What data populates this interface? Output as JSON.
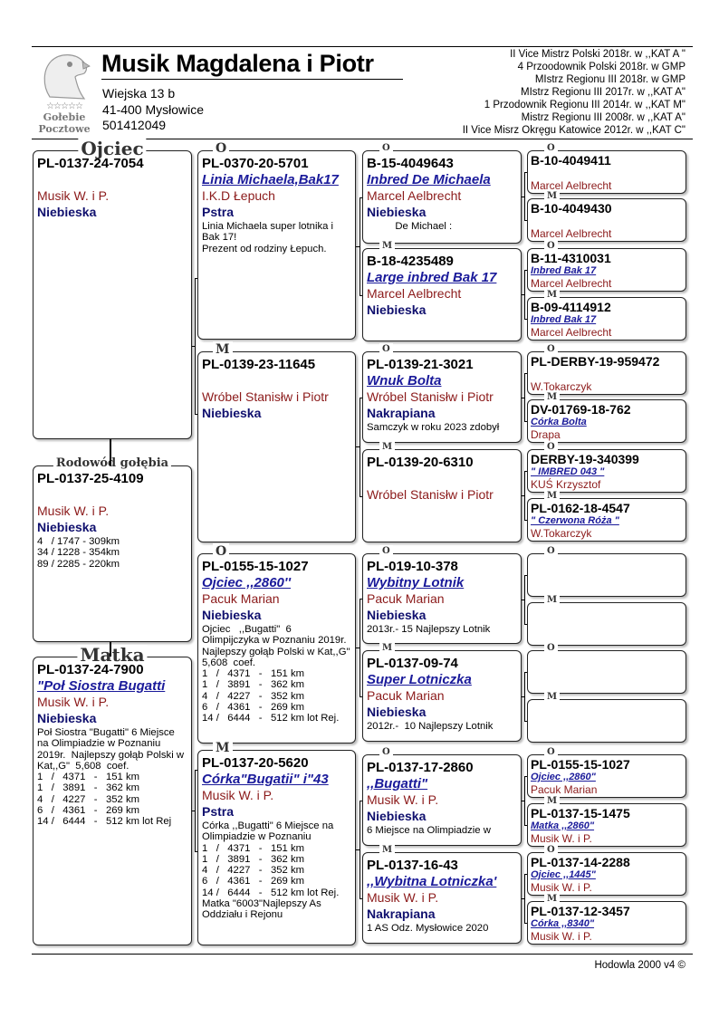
{
  "header": {
    "logo": {
      "text_line1": "Gołebie",
      "text_line2": "Pocztowe",
      "stars": "☆☆☆☆☆"
    },
    "title": "Musik Magdalena i Piotr",
    "address": [
      "Wiejska 13 b",
      "41-400 Mysłowice",
      "501412049"
    ],
    "achievements": [
      "II Vice Mistrz Polski 2018r. w ,,KAT A \"",
      "4 Przoodownik Polski 2018r. w GMP",
      "MIstrz Regionu III 2018r. w GMP",
      "MIstrz Regionu III 2017r. w ,,KAT A\"",
      "1 Przodownik Regionu III 2014r. w ,,KAT M\"",
      "Mistrz Regionu III 2008r. w ,,KAT A\"",
      "II Vice Misrz Okręgu Katowice 2012r. w ,,KAT C\""
    ]
  },
  "pedigree": [
    {
      "label": "Ojciec",
      "ring": "PL-0137-24-7054",
      "name": "",
      "owner": "Musik W. i P.",
      "color": "Niebieska",
      "notes": ""
    },
    {
      "label": "Rodowód gołębia",
      "ring": "PL-0137-25-4109",
      "name": "",
      "owner": "Musik W. i P.",
      "color": "Niebieska",
      "notes": "4   / 1747 - 309km\n34 / 1228 - 354km\n89 / 2285 - 220km"
    },
    {
      "label": "Matka",
      "ring": "PL-0137-24-7900",
      "name": "\"Poł Siostra Bugatti",
      "owner": "Musik W. i P.",
      "color": "Niebieska",
      "notes": "Poł Siostra \"Bugatti\" 6 Miejsce na Olimpiadzie w Poznaniu 2019r.  Najlepszy gołąb Polski w Kat,,G\"  5,608  coef.\n1   /   4371   -   151 km\n1   /   3891   -   362 km\n4   /   4227   -   352 km\n6   /   4361   -   269 km\n14 /   6444   -   512 km lot Rej"
    },
    {
      "label": "O",
      "ring": "PL-0370-20-5701",
      "name": "Linia Michaela,Bak17",
      "owner": "I.K.D Łepuch",
      "color": "Pstra",
      "notes": "Linia Michaela super lotnika i Bak 17!\nPrezent od rodziny Łepuch."
    },
    {
      "label": "M",
      "ring": "PL-0139-23-11645",
      "name": "",
      "owner": "Wróbel Stanisłw i Piotr",
      "color": "Niebieska",
      "notes": ""
    },
    {
      "label": "O",
      "ring": "PL-0155-15-1027",
      "name": "Ojciec ,,2860''",
      "owner": "Pacuk Marian",
      "color": "Niebieska",
      "notes": "Ojciec   ,,Bugatti\"  6 Olimpijczyka w Poznaniu 2019r.  Najlepszy gołąb Polski w Kat,,G\"  5,608  coef.\n1   /   4371   -   151 km\n1   /   3891   -   362 km\n4   /   4227   -   352 km\n6   /   4361   -   269 km\n14 /   6444   -   512 km lot Rej."
    },
    {
      "label": "M",
      "ring": "PL-0137-20-5620",
      "name": "Córka\"Bugatii\" i\"43",
      "owner": "Musik W. i P.",
      "color": "Pstra",
      "notes": "Córka ,,Bugatti\" 6 Miejsce na Olimpiadzie w Poznaniu\n1   /   4371   -   151 km\n1   /   3891   -   362 km\n4   /   4227   -   352 km\n6   /   4361   -   269 km\n14 /   6444   -   512 km lot Rej.\nMatka \"6003\"Najlepszy As Oddziału i Rejonu"
    },
    {
      "label": "O",
      "ring": "B-15-4049643",
      "name": "Inbred De Michaela",
      "owner": "Marcel Aelbrecht",
      "color": "Niebieska",
      "notes": "          De Michael :"
    },
    {
      "label": "M",
      "ring": "B-18-4235489",
      "name": "Large inbred Bak 17",
      "owner": "Marcel Aelbrecht",
      "color": "Niebieska",
      "notes": ""
    },
    {
      "label": "O",
      "ring": "PL-0139-21-3021",
      "name": "Wnuk Bolta",
      "owner": "Wróbel Stanisłw i Piotr",
      "color": "Nakrapiana",
      "notes": "Samczyk w roku 2023 zdobył"
    },
    {
      "label": "M",
      "ring": "PL-0139-20-6310",
      "name": "",
      "owner": "Wróbel Stanisłw i Piotr",
      "color": "",
      "notes": ""
    },
    {
      "label": "O",
      "ring": "PL-019-10-378",
      "name": "Wybitny Lotnik",
      "owner": "Pacuk Marian",
      "color": "Niebieska",
      "notes": "2013r.- 15 Najlepszy Lotnik"
    },
    {
      "label": "M",
      "ring": "PL-0137-09-74",
      "name": "Super Lotniczka",
      "owner": "Pacuk Marian",
      "color": "Niebieska",
      "notes": "2012r.-  10 Najlepszy Lotnik"
    },
    {
      "label": "O",
      "ring": "PL-0137-17-2860",
      "name": ",,Bugatti\"",
      "owner": "Musik W. i P.",
      "color": "Niebieska",
      "notes": "6 Miejsce na Olimpiadzie w"
    },
    {
      "label": "M",
      "ring": "PL-0137-16-43",
      "name": ",,Wybitna Lotniczka'",
      "owner": "Musik W. i P.",
      "color": "Nakrapiana",
      "notes": "1 AS Odz. Mysłowice 2020"
    },
    {
      "label": "O",
      "ring": "B-10-4049411",
      "name": "",
      "owner": "Marcel Aelbrecht"
    },
    {
      "label": "M",
      "ring": "B-10-4049430",
      "name": "",
      "owner": "Marcel Aelbrecht"
    },
    {
      "label": "O",
      "ring": "B-11-4310031",
      "name": "Inbred Bak 17",
      "owner": "Marcel Aelbrecht"
    },
    {
      "label": "M",
      "ring": "B-09-4114912",
      "name": "Inbred Bak 17",
      "owner": "Marcel Aelbrecht"
    },
    {
      "label": "O",
      "ring": "PL-DERBY-19-959472",
      "name": "",
      "owner": "W.Tokarczyk"
    },
    {
      "label": "M",
      "ring": "DV-01769-18-762",
      "name": "Córka Bolta",
      "owner": "Drapa"
    },
    {
      "label": "O",
      "ring": "DERBY-19-340399",
      "name": "\" IMBRED 043 \"",
      "owner": "KUŚ Krzysztof"
    },
    {
      "label": "M",
      "ring": "PL-0162-18-4547",
      "name": "\" Czerwona Róża \"",
      "owner": "W.Tokarczyk"
    },
    {
      "label": "O",
      "ring": "",
      "name": "",
      "owner": ""
    },
    {
      "label": "M",
      "ring": "",
      "name": "",
      "owner": ""
    },
    {
      "label": "O",
      "ring": "",
      "name": "",
      "owner": ""
    },
    {
      "label": "M",
      "ring": "",
      "name": "",
      "owner": ""
    },
    {
      "label": "O",
      "ring": "PL-0155-15-1027",
      "name": "Ojciec ,,2860\"",
      "owner": "Pacuk Marian"
    },
    {
      "label": "M",
      "ring": "PL-0137-15-1475",
      "name": "Matka ,,2860\"",
      "owner": "Musik W. i P."
    },
    {
      "label": "O",
      "ring": "PL-0137-14-2288",
      "name": "Ojciec ,,1445\"",
      "owner": "Musik W. i P."
    },
    {
      "label": "M",
      "ring": "PL-0137-12-3457",
      "name": "Córka ,,8340\"",
      "owner": "Musik W. i P."
    }
  ],
  "footer": {
    "text": "Hodowla 2000 v4 ©"
  }
}
